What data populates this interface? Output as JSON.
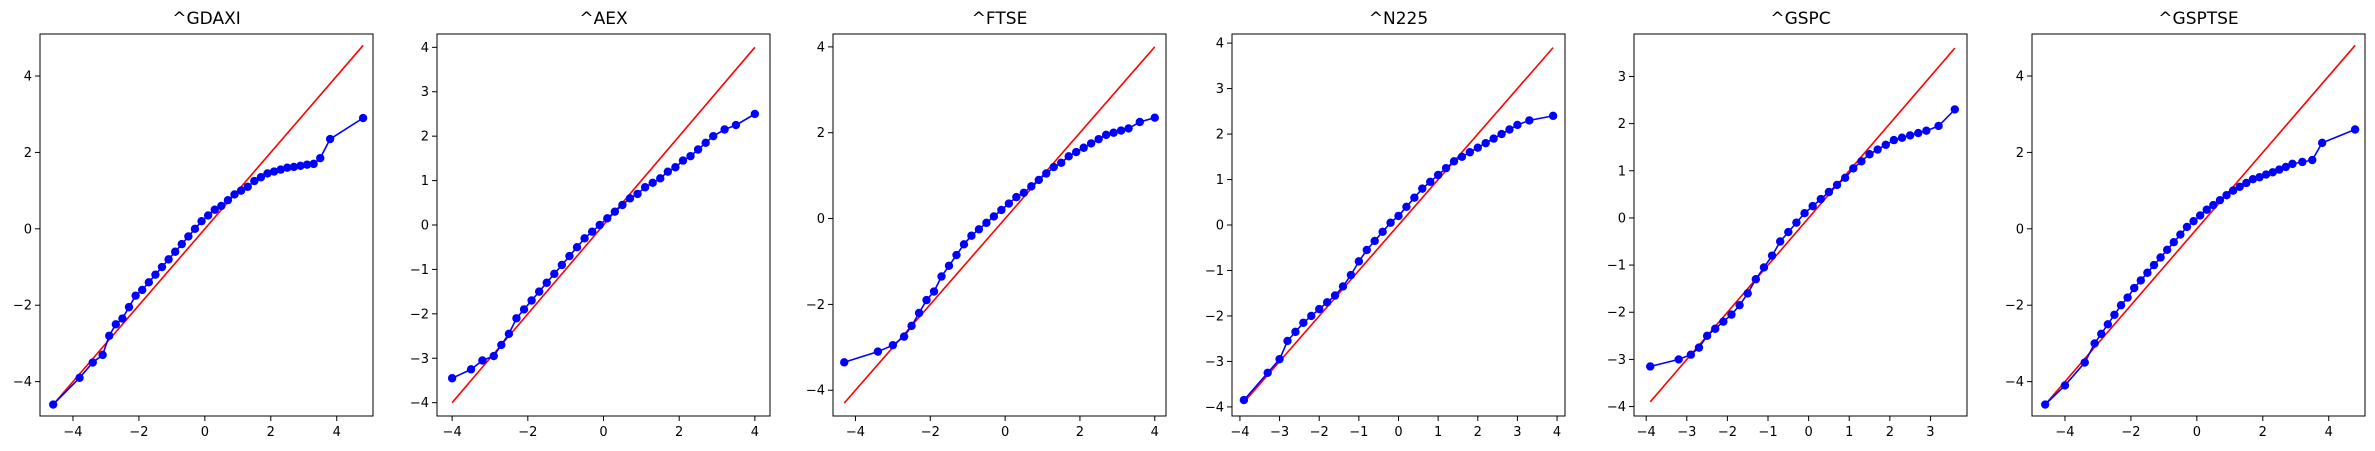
{
  "chart_data": [
    {
      "type": "line",
      "title": "^GDAXI",
      "xlim": [
        -5.0,
        5.1
      ],
      "ylim": [
        -4.9,
        5.1
      ],
      "xticks": [
        -4,
        -2,
        0,
        2,
        4
      ],
      "yticks": [
        -4,
        -2,
        0,
        2,
        4
      ],
      "reference_line": {
        "x": [
          -4.6,
          4.8
        ],
        "y": [
          -4.6,
          4.8
        ],
        "color": "#ff0000"
      },
      "series": [
        {
          "color": "#0000ff",
          "x": [
            -4.6,
            -3.8,
            -3.4,
            -3.1,
            -2.9,
            -2.7,
            -2.5,
            -2.3,
            -2.1,
            -1.9,
            -1.7,
            -1.5,
            -1.3,
            -1.1,
            -0.9,
            -0.7,
            -0.5,
            -0.3,
            -0.1,
            0.1,
            0.3,
            0.5,
            0.7,
            0.9,
            1.1,
            1.3,
            1.5,
            1.7,
            1.9,
            2.1,
            2.3,
            2.5,
            2.7,
            2.9,
            3.1,
            3.3,
            3.5,
            3.8,
            4.8
          ],
          "y": [
            -4.6,
            -3.9,
            -3.5,
            -3.3,
            -2.8,
            -2.5,
            -2.35,
            -2.05,
            -1.75,
            -1.6,
            -1.4,
            -1.2,
            -1.0,
            -0.8,
            -0.6,
            -0.4,
            -0.2,
            0.0,
            0.2,
            0.35,
            0.5,
            0.6,
            0.75,
            0.9,
            1.0,
            1.1,
            1.25,
            1.35,
            1.45,
            1.5,
            1.55,
            1.6,
            1.62,
            1.65,
            1.68,
            1.7,
            1.85,
            2.35,
            2.9
          ]
        }
      ]
    },
    {
      "type": "line",
      "title": "^AEX",
      "xlim": [
        -4.4,
        4.4
      ],
      "ylim": [
        -4.3,
        4.3
      ],
      "xticks": [
        -4,
        -2,
        0,
        2,
        4
      ],
      "yticks": [
        -4,
        -3,
        -2,
        -1,
        0,
        1,
        2,
        3,
        4
      ],
      "reference_line": {
        "x": [
          -4.0,
          4.0
        ],
        "y": [
          -4.0,
          4.0
        ],
        "color": "#ff0000"
      },
      "series": [
        {
          "color": "#0000ff",
          "x": [
            -4.0,
            -3.5,
            -3.2,
            -2.9,
            -2.7,
            -2.5,
            -2.3,
            -2.1,
            -1.9,
            -1.7,
            -1.5,
            -1.3,
            -1.1,
            -0.9,
            -0.7,
            -0.5,
            -0.3,
            -0.1,
            0.1,
            0.3,
            0.5,
            0.7,
            0.9,
            1.1,
            1.3,
            1.5,
            1.7,
            1.9,
            2.1,
            2.3,
            2.5,
            2.7,
            2.9,
            3.2,
            3.5,
            4.0
          ],
          "y": [
            -3.45,
            -3.25,
            -3.05,
            -2.95,
            -2.7,
            -2.45,
            -2.1,
            -1.9,
            -1.7,
            -1.5,
            -1.3,
            -1.1,
            -0.9,
            -0.7,
            -0.5,
            -0.3,
            -0.15,
            0.0,
            0.15,
            0.3,
            0.45,
            0.6,
            0.7,
            0.85,
            0.95,
            1.05,
            1.2,
            1.3,
            1.45,
            1.55,
            1.7,
            1.85,
            2.0,
            2.15,
            2.25,
            2.5
          ]
        }
      ]
    },
    {
      "type": "line",
      "title": "^FTSE",
      "xlim": [
        -4.6,
        4.3
      ],
      "ylim": [
        -4.6,
        4.3
      ],
      "xticks": [
        -4,
        -2,
        0,
        2,
        4
      ],
      "yticks": [
        -4,
        -2,
        0,
        2,
        4
      ],
      "reference_line": {
        "x": [
          -4.3,
          4.0
        ],
        "y": [
          -4.3,
          4.0
        ],
        "color": "#ff0000"
      },
      "series": [
        {
          "color": "#0000ff",
          "x": [
            -4.3,
            -3.4,
            -3.0,
            -2.7,
            -2.5,
            -2.3,
            -2.1,
            -1.9,
            -1.7,
            -1.5,
            -1.3,
            -1.1,
            -0.9,
            -0.7,
            -0.5,
            -0.3,
            -0.1,
            0.1,
            0.3,
            0.5,
            0.7,
            0.9,
            1.1,
            1.3,
            1.5,
            1.7,
            1.9,
            2.1,
            2.3,
            2.5,
            2.7,
            2.9,
            3.1,
            3.3,
            3.6,
            4.0
          ],
          "y": [
            -3.35,
            -3.1,
            -2.95,
            -2.75,
            -2.5,
            -2.2,
            -1.9,
            -1.7,
            -1.35,
            -1.1,
            -0.85,
            -0.6,
            -0.4,
            -0.25,
            -0.1,
            0.05,
            0.2,
            0.35,
            0.5,
            0.6,
            0.75,
            0.9,
            1.05,
            1.2,
            1.3,
            1.45,
            1.55,
            1.65,
            1.75,
            1.85,
            1.95,
            2.0,
            2.05,
            2.1,
            2.25,
            2.35
          ]
        }
      ]
    },
    {
      "type": "line",
      "title": "^N225",
      "xlim": [
        -4.2,
        4.2
      ],
      "ylim": [
        -4.2,
        4.2
      ],
      "xticks": [
        -4,
        -3,
        -2,
        -1,
        0,
        1,
        2,
        3,
        4
      ],
      "yticks": [
        -4,
        -3,
        -2,
        -1,
        0,
        1,
        2,
        3,
        4
      ],
      "reference_line": {
        "x": [
          -3.9,
          3.9
        ],
        "y": [
          -3.9,
          3.9
        ],
        "color": "#ff0000"
      },
      "series": [
        {
          "color": "#0000ff",
          "x": [
            -3.9,
            -3.3,
            -3.0,
            -2.8,
            -2.6,
            -2.4,
            -2.2,
            -2.0,
            -1.8,
            -1.6,
            -1.4,
            -1.2,
            -1.0,
            -0.8,
            -0.6,
            -0.4,
            -0.2,
            0.0,
            0.2,
            0.4,
            0.6,
            0.8,
            1.0,
            1.2,
            1.4,
            1.6,
            1.8,
            2.0,
            2.2,
            2.4,
            2.6,
            2.8,
            3.0,
            3.3,
            3.9
          ],
          "y": [
            -3.85,
            -3.25,
            -2.95,
            -2.55,
            -2.35,
            -2.15,
            -2.0,
            -1.85,
            -1.7,
            -1.55,
            -1.35,
            -1.1,
            -0.8,
            -0.55,
            -0.35,
            -0.15,
            0.05,
            0.2,
            0.4,
            0.6,
            0.8,
            0.95,
            1.1,
            1.25,
            1.4,
            1.5,
            1.6,
            1.7,
            1.8,
            1.9,
            2.0,
            2.1,
            2.2,
            2.3,
            2.4
          ]
        }
      ]
    },
    {
      "type": "line",
      "title": "^GSPC",
      "xlim": [
        -4.3,
        3.9
      ],
      "ylim": [
        -4.2,
        3.9
      ],
      "xticks": [
        -4,
        -3,
        -2,
        -1,
        0,
        1,
        2,
        3
      ],
      "yticks": [
        -4,
        -3,
        -2,
        -1,
        0,
        1,
        2,
        3
      ],
      "reference_line": {
        "x": [
          -3.9,
          3.6
        ],
        "y": [
          -3.9,
          3.6
        ],
        "color": "#ff0000"
      },
      "series": [
        {
          "color": "#0000ff",
          "x": [
            -3.9,
            -3.2,
            -2.9,
            -2.7,
            -2.5,
            -2.3,
            -2.1,
            -1.9,
            -1.7,
            -1.5,
            -1.3,
            -1.1,
            -0.9,
            -0.7,
            -0.5,
            -0.3,
            -0.1,
            0.1,
            0.3,
            0.5,
            0.7,
            0.9,
            1.1,
            1.3,
            1.5,
            1.7,
            1.9,
            2.1,
            2.3,
            2.5,
            2.7,
            2.9,
            3.2,
            3.6
          ],
          "y": [
            -3.15,
            -3.0,
            -2.9,
            -2.75,
            -2.5,
            -2.35,
            -2.2,
            -2.05,
            -1.85,
            -1.6,
            -1.3,
            -1.05,
            -0.8,
            -0.5,
            -0.3,
            -0.1,
            0.1,
            0.25,
            0.4,
            0.55,
            0.7,
            0.85,
            1.05,
            1.2,
            1.35,
            1.45,
            1.55,
            1.65,
            1.7,
            1.75,
            1.8,
            1.85,
            1.95,
            2.3
          ]
        }
      ]
    },
    {
      "type": "line",
      "title": "^GSPTSE",
      "xlim": [
        -5.0,
        5.1
      ],
      "ylim": [
        -4.9,
        5.1
      ],
      "xticks": [
        -4,
        -2,
        0,
        2,
        4
      ],
      "yticks": [
        -4,
        -2,
        0,
        2,
        4
      ],
      "reference_line": {
        "x": [
          -4.6,
          4.8
        ],
        "y": [
          -4.6,
          4.8
        ],
        "color": "#ff0000"
      },
      "series": [
        {
          "color": "#0000ff",
          "x": [
            -4.6,
            -4.0,
            -3.4,
            -3.1,
            -2.9,
            -2.7,
            -2.5,
            -2.3,
            -2.1,
            -1.9,
            -1.7,
            -1.5,
            -1.3,
            -1.1,
            -0.9,
            -0.7,
            -0.5,
            -0.3,
            -0.1,
            0.1,
            0.3,
            0.5,
            0.7,
            0.9,
            1.1,
            1.3,
            1.5,
            1.7,
            1.9,
            2.1,
            2.3,
            2.5,
            2.7,
            2.9,
            3.2,
            3.5,
            3.8,
            4.8
          ],
          "y": [
            -4.6,
            -4.1,
            -3.5,
            -3.0,
            -2.75,
            -2.5,
            -2.25,
            -2.0,
            -1.8,
            -1.55,
            -1.35,
            -1.15,
            -0.95,
            -0.75,
            -0.55,
            -0.35,
            -0.15,
            0.05,
            0.2,
            0.35,
            0.5,
            0.62,
            0.75,
            0.88,
            1.0,
            1.1,
            1.2,
            1.3,
            1.35,
            1.42,
            1.48,
            1.55,
            1.62,
            1.7,
            1.75,
            1.8,
            2.25,
            2.6
          ]
        }
      ]
    }
  ]
}
